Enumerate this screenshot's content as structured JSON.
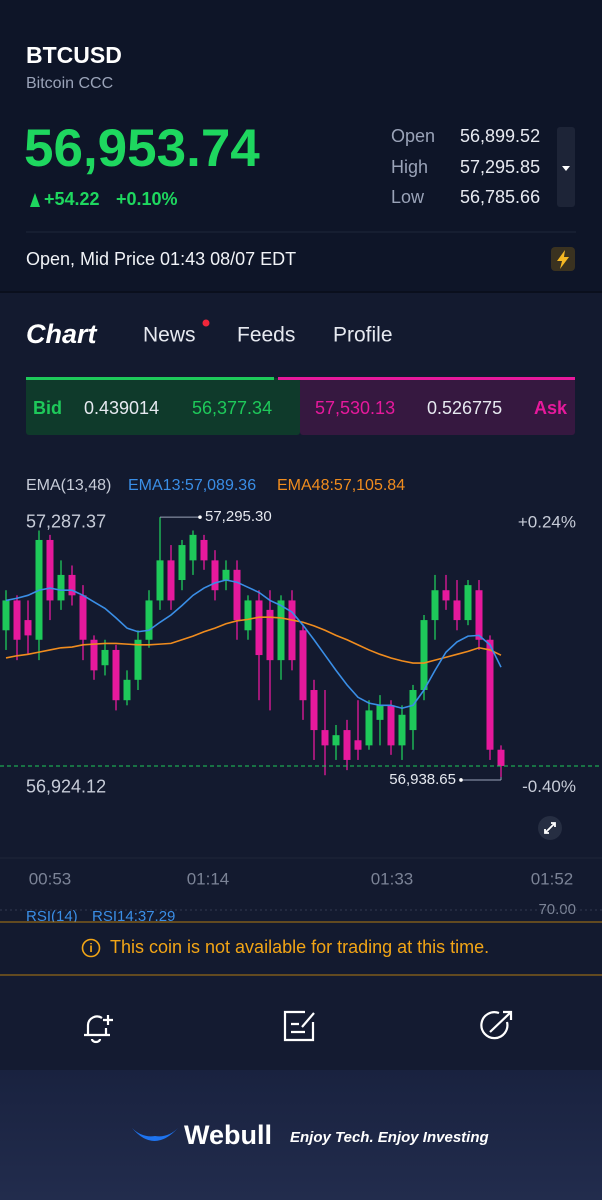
{
  "header": {
    "symbol": "BTCUSD",
    "name": "Bitcoin CCC",
    "price": "56,953.74",
    "change": "+54.22",
    "change_pct": "+0.10%",
    "stats": [
      {
        "label": "Open",
        "value": "56,899.52"
      },
      {
        "label": "High",
        "value": "57,295.85"
      },
      {
        "label": "Low",
        "value": "56,785.66"
      }
    ]
  },
  "status": "Open, Mid Price 01:43 08/07 EDT",
  "tabs": [
    "Chart",
    "News",
    "Feeds",
    "Profile"
  ],
  "quote": {
    "bid_label": "Bid",
    "bid_size": "0.439014",
    "bid_price": "56,377.34",
    "ask_price": "57,530.13",
    "ask_size": "0.526775",
    "ask_label": "Ask"
  },
  "indicator": {
    "name": "EMA(13,48)",
    "ema13": "EMA13:57,089.36",
    "ema48": "EMA48:57,105.84"
  },
  "chart": {
    "type": "candlestick",
    "up_color": "#1ec95a",
    "down_color": "#e6199c",
    "ema13_color": "#3a8ee6",
    "ema48_color": "#f08c1e",
    "ylim": [
      56907,
      57312
    ],
    "yticks": [
      {
        "value": 57287.37,
        "label": "57,287.37"
      },
      {
        "value": 56924.12,
        "label": "56,924.12"
      }
    ],
    "pct_top": "+0.24%",
    "pct_bottom": "-0.40%",
    "high_label": {
      "value": 57295.3,
      "label": "57,295.30"
    },
    "low_label": {
      "value": 56938.65,
      "label": "56,938.65"
    },
    "xticks": [
      "00:53",
      "01:14",
      "01:33",
      "01:52"
    ],
    "candles": [
      [
        57140,
        57195,
        57113,
        57181
      ],
      [
        57181,
        57188,
        57099,
        57127
      ],
      [
        57154,
        57181,
        57106,
        57133
      ],
      [
        57127,
        57277,
        57099,
        57264
      ],
      [
        57264,
        57271,
        57154,
        57181
      ],
      [
        57181,
        57236,
        57168,
        57216
      ],
      [
        57216,
        57229,
        57174,
        57188
      ],
      [
        57188,
        57202,
        57099,
        57127
      ],
      [
        57127,
        57133,
        57072,
        57085
      ],
      [
        57092,
        57127,
        57078,
        57113
      ],
      [
        57113,
        57120,
        57030,
        57044
      ],
      [
        57044,
        57085,
        57037,
        57072
      ],
      [
        57072,
        57140,
        57058,
        57127
      ],
      [
        57127,
        57195,
        57116,
        57181
      ],
      [
        57181,
        57295.3,
        57168,
        57236
      ],
      [
        57236,
        57257,
        57168,
        57181
      ],
      [
        57209,
        57264,
        57195,
        57257
      ],
      [
        57236,
        57277,
        57216,
        57271
      ],
      [
        57264,
        57271,
        57223,
        57236
      ],
      [
        57236,
        57250,
        57181,
        57195
      ],
      [
        57209,
        57236,
        57195,
        57223
      ],
      [
        57223,
        57236,
        57127,
        57154
      ],
      [
        57140,
        57188,
        57127,
        57181
      ],
      [
        57181,
        57195,
        57044,
        57106
      ],
      [
        57168,
        57195,
        57030,
        57099
      ],
      [
        57099,
        57188,
        57072,
        57181
      ],
      [
        57181,
        57195,
        57085,
        57099
      ],
      [
        57140,
        57147,
        57017,
        57044
      ],
      [
        57058,
        57072,
        56962,
        57003
      ],
      [
        57003,
        57058,
        56941,
        56982
      ],
      [
        56982,
        57010,
        56962,
        56996
      ],
      [
        57003,
        57017,
        56948,
        56962
      ],
      [
        56989,
        57044,
        56962,
        56976
      ],
      [
        56982,
        57044,
        56976,
        57030
      ],
      [
        57017,
        57051,
        56982,
        57037
      ],
      [
        57037,
        57044,
        56969,
        56982
      ],
      [
        56982,
        57037,
        56962,
        57024
      ],
      [
        57003,
        57065,
        56976,
        57058
      ],
      [
        57058,
        57161,
        57044,
        57154
      ],
      [
        57154,
        57216,
        57127,
        57195
      ],
      [
        57195,
        57216,
        57168,
        57181
      ],
      [
        57181,
        57209,
        57140,
        57154
      ],
      [
        57154,
        57209,
        57147,
        57202
      ],
      [
        57195,
        57209,
        57113,
        57127
      ],
      [
        57127,
        57133,
        56962,
        56976
      ],
      [
        56976,
        56982,
        56938.65,
        56953.74
      ]
    ],
    "ema13": [
      57181,
      57184,
      57188,
      57195,
      57198,
      57195,
      57195,
      57188,
      57179,
      57170,
      57157,
      57143,
      57138,
      57140,
      57151,
      57161,
      57174,
      57188,
      57198,
      57205,
      57209,
      57206,
      57199,
      57192,
      57181,
      57174,
      57165,
      57147,
      57127,
      57106,
      57085,
      57065,
      57048,
      57040,
      57037,
      57037,
      57033,
      57037,
      57058,
      57085,
      57110,
      57124,
      57132,
      57133,
      57120,
      57089.36
    ],
    "ema48": [
      57102,
      57105,
      57107,
      57110,
      57113,
      57116,
      57117,
      57120,
      57121,
      57122,
      57122,
      57121,
      57120,
      57120,
      57121,
      57122,
      57127,
      57132,
      57138,
      57143,
      57149,
      57153,
      57155,
      57158,
      57158,
      57157,
      57154,
      57151,
      57146,
      57140,
      57133,
      57127,
      57120,
      57113,
      57107,
      57102,
      57098,
      57095,
      57095,
      57099,
      57103,
      57107,
      57111,
      57116,
      57113,
      57105.84
    ]
  },
  "rsi": {
    "name": "RSI(14)",
    "value": "RSI14:37.29",
    "level": "70.00"
  },
  "notice": "This coin is not available for trading at this time.",
  "brand": {
    "name": "Webull",
    "slogan": "Enjoy Tech. Enjoy Investing"
  }
}
